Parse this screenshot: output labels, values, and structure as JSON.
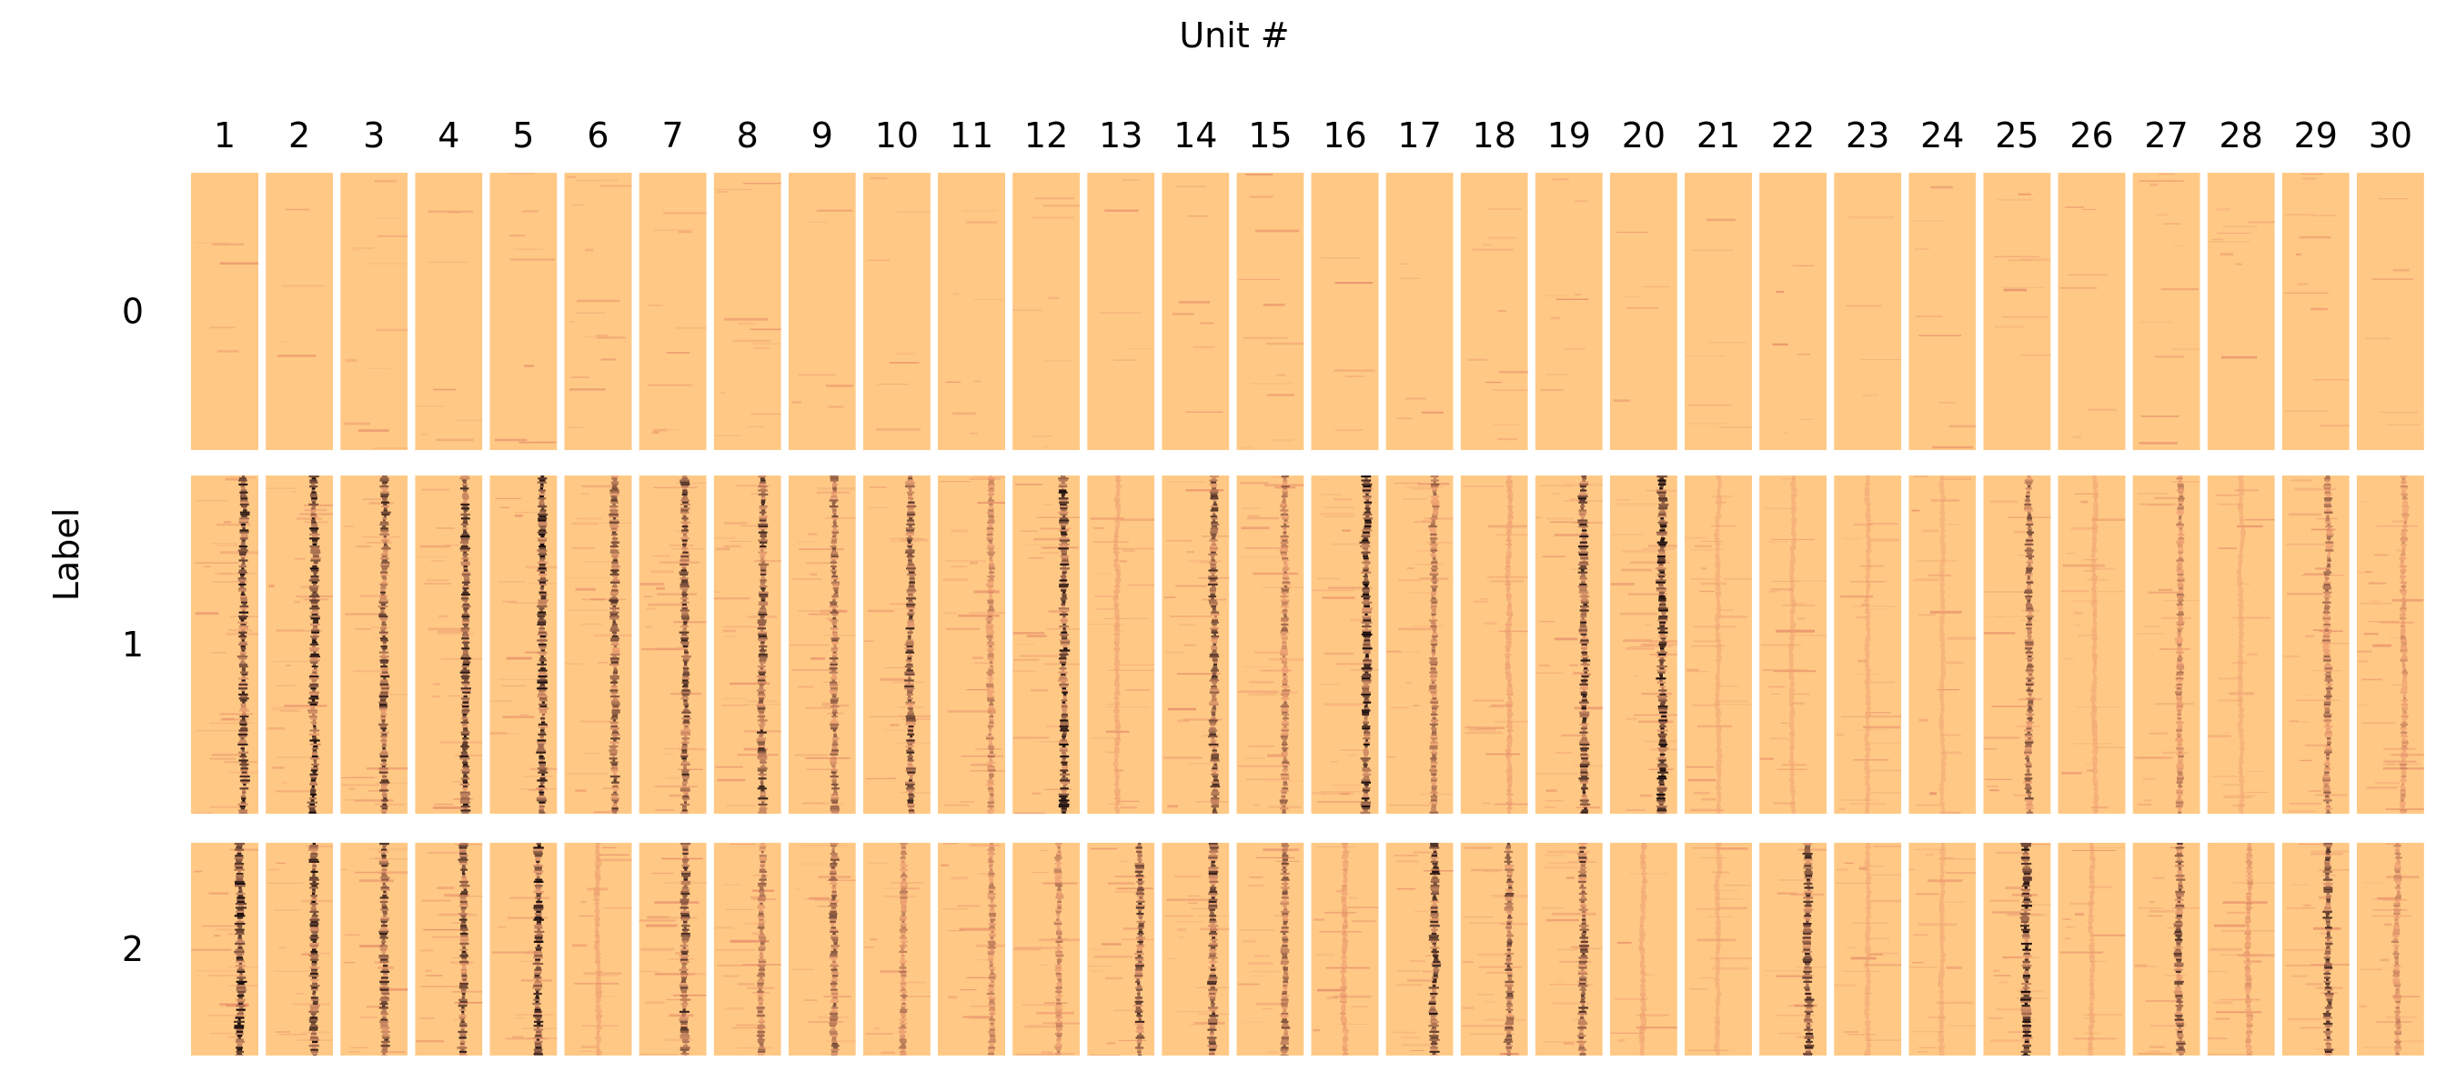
{
  "chart_data": {
    "type": "heatmap",
    "title": "Unit #",
    "xlabel": "Unit #",
    "ylabel": "Label",
    "columns": [
      "1",
      "2",
      "3",
      "4",
      "5",
      "6",
      "7",
      "8",
      "9",
      "10",
      "11",
      "12",
      "13",
      "14",
      "15",
      "16",
      "17",
      "18",
      "19",
      "20",
      "21",
      "22",
      "23",
      "24",
      "25",
      "26",
      "27",
      "28",
      "29",
      "30"
    ],
    "rows": [
      "0",
      "1",
      "2"
    ],
    "colormap": {
      "low": "#ffc985",
      "mid": "#e88f6a",
      "high": "#1a0d0d"
    },
    "grid": false,
    "band_position": [
      [
        0.5,
        0.5,
        0.5,
        0.5,
        0.5,
        0.5,
        0.5,
        0.5,
        0.5,
        0.5,
        0.5,
        0.5,
        0.5,
        0.5,
        0.5,
        0.5,
        0.5,
        0.5,
        0.5,
        0.5,
        0.5,
        0.5,
        0.5,
        0.5,
        0.5,
        0.5,
        0.5,
        0.5,
        0.5,
        0.5
      ],
      [
        0.78,
        0.72,
        0.66,
        0.74,
        0.78,
        0.75,
        0.68,
        0.72,
        0.68,
        0.7,
        0.78,
        0.76,
        0.45,
        0.78,
        0.72,
        0.82,
        0.72,
        0.72,
        0.72,
        0.78,
        0.5,
        0.5,
        0.5,
        0.5,
        0.68,
        0.55,
        0.7,
        0.5,
        0.68,
        0.7
      ],
      [
        0.72,
        0.72,
        0.66,
        0.72,
        0.72,
        0.5,
        0.68,
        0.72,
        0.68,
        0.6,
        0.8,
        0.68,
        0.78,
        0.76,
        0.72,
        0.5,
        0.72,
        0.72,
        0.7,
        0.5,
        0.5,
        0.72,
        0.5,
        0.5,
        0.64,
        0.5,
        0.7,
        0.62,
        0.68,
        0.6
      ]
    ],
    "band_intensity": [
      [
        0,
        0,
        0,
        0,
        0,
        0,
        0,
        0,
        0,
        0,
        0,
        0,
        0,
        0,
        0,
        0,
        0,
        0,
        0,
        0,
        0,
        0,
        0,
        0,
        0,
        0,
        0,
        0,
        0,
        0
      ],
      [
        0.9,
        0.95,
        0.85,
        0.9,
        0.95,
        0.8,
        0.85,
        0.85,
        0.7,
        0.85,
        0.5,
        0.95,
        0.2,
        0.8,
        0.6,
        1.0,
        0.6,
        0.25,
        0.9,
        1.0,
        0.1,
        0.1,
        0.1,
        0.05,
        0.7,
        0.15,
        0.5,
        0.1,
        0.6,
        0.4
      ],
      [
        1.0,
        0.9,
        0.85,
        0.85,
        0.95,
        0.25,
        0.85,
        0.6,
        0.7,
        0.5,
        0.5,
        0.5,
        0.8,
        0.85,
        0.7,
        0.3,
        0.9,
        0.75,
        0.8,
        0.2,
        0.1,
        0.85,
        0.1,
        0.1,
        1.0,
        0.15,
        0.8,
        0.35,
        0.85,
        0.45
      ]
    ],
    "background_noise": [
      0.08,
      0.2,
      0.22
    ]
  }
}
